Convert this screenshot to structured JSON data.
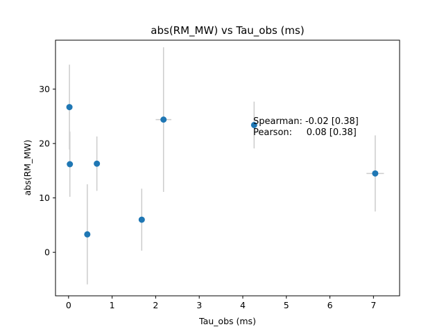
{
  "chart_data": {
    "type": "scatter",
    "title": "abs(RM_MW) vs Tau_obs (ms)",
    "xlabel": "Tau_obs (ms)",
    "ylabel": "abs(RM_MW)",
    "xlim": [
      -0.3,
      7.6
    ],
    "ylim": [
      -8,
      39
    ],
    "xticks": [
      0,
      1,
      2,
      3,
      4,
      5,
      6,
      7
    ],
    "yticks": [
      0,
      10,
      20,
      30
    ],
    "grid": false,
    "marker_color": "#1f77b4",
    "errorbar_color": "#cccccc",
    "points": [
      {
        "x": 0.02,
        "y": 26.7,
        "yerr": 7.8,
        "xerr": 0.0
      },
      {
        "x": 0.03,
        "y": 16.2,
        "yerr": 6.0,
        "xerr": 0.0
      },
      {
        "x": 0.43,
        "y": 3.3,
        "yerr": 9.2,
        "xerr": 0.0
      },
      {
        "x": 0.65,
        "y": 16.3,
        "yerr": 5.0,
        "xerr": 0.0
      },
      {
        "x": 1.68,
        "y": 6.0,
        "yerr": 5.7,
        "xerr": 0.0
      },
      {
        "x": 2.18,
        "y": 24.4,
        "yerr": 13.3,
        "xerr": 0.18
      },
      {
        "x": 4.26,
        "y": 23.4,
        "yerr": 4.3,
        "xerr": 0.0
      },
      {
        "x": 7.04,
        "y": 14.5,
        "yerr": 7.0,
        "xerr": 0.2
      }
    ],
    "annotations": [
      "Spearman: -0.02 [0.38]",
      "Pearson:     0.08 [0.38]"
    ]
  }
}
